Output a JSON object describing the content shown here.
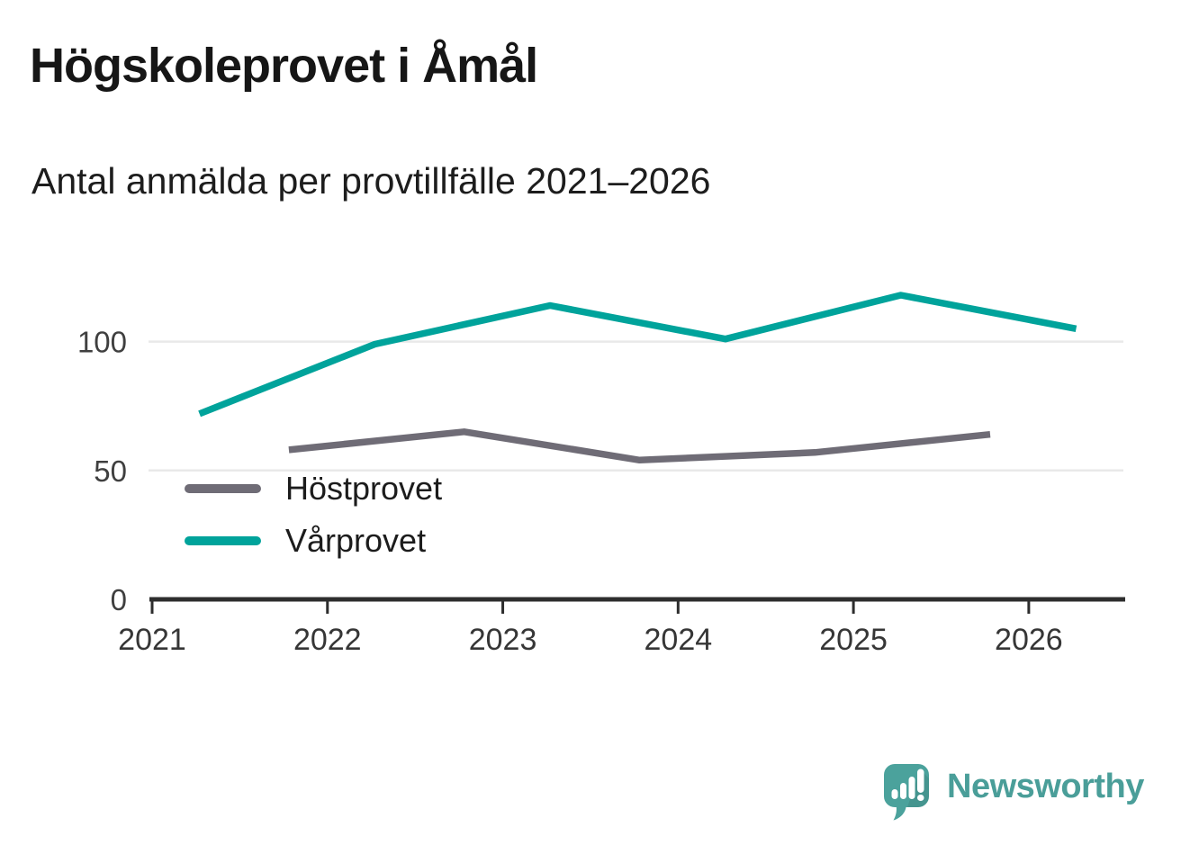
{
  "title": "Högskoleprovet i Åmål",
  "subtitle": "Antal anmälda per provtillfälle 2021–2026",
  "colors": {
    "accent_teal": "#00a39b",
    "accent_gray": "#6f6c76",
    "axis": "#2d2d2d",
    "grid": "#e9e9e9",
    "tick_label": "#3f3f3f",
    "brand": "#4a9e99",
    "brand_bubble": "#4ba29c"
  },
  "chart_data": {
    "type": "line",
    "title": "Högskoleprovet i Åmål",
    "subtitle": "Antal anmälda per provtillfälle 2021–2026",
    "xlabel": "",
    "ylabel": "",
    "x_ticks": [
      "2021",
      "2022",
      "2023",
      "2024",
      "2025",
      "2026"
    ],
    "y_ticks": [
      0,
      50,
      100
    ],
    "xlim": [
      2021,
      2026.55
    ],
    "ylim": [
      0,
      125
    ],
    "grid": "horizontal gridlines at 50 and 100",
    "legend_position": "inside lower-left",
    "series": [
      {
        "name": "Höstprovet",
        "color": "#6f6c76",
        "x": [
          2021.78,
          2022.78,
          2023.78,
          2024.78,
          2025.78
        ],
        "values": [
          58,
          65,
          54,
          57,
          64
        ]
      },
      {
        "name": "Vårprovet",
        "color": "#00a39b",
        "x": [
          2021.27,
          2022.27,
          2023.27,
          2024.27,
          2025.27,
          2026.27
        ],
        "values": [
          72,
          99,
          114,
          101,
          118,
          105
        ]
      }
    ]
  },
  "footer": {
    "brand": "Newsworthy"
  }
}
